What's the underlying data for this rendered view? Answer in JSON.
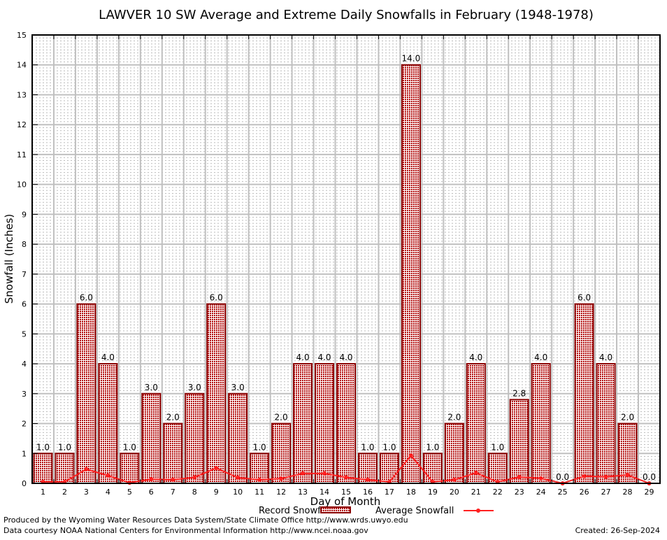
{
  "chart_data": {
    "type": "bar",
    "title": "LAWVER 10 SW Average and Extreme Daily Snowfalls in February (1948-1978)",
    "xlabel": "Day of Month",
    "ylabel": "Snowfall (Inches)",
    "ylim": [
      0,
      15
    ],
    "yticks": [
      0,
      1,
      2,
      3,
      4,
      5,
      6,
      7,
      8,
      9,
      10,
      11,
      12,
      13,
      14,
      15
    ],
    "categories": [
      "1",
      "2",
      "3",
      "4",
      "5",
      "6",
      "7",
      "8",
      "9",
      "10",
      "11",
      "12",
      "13",
      "14",
      "15",
      "16",
      "17",
      "18",
      "19",
      "20",
      "21",
      "22",
      "23",
      "24",
      "25",
      "26",
      "27",
      "28",
      "29"
    ],
    "grid": true,
    "legend_position": "bottom",
    "series": [
      {
        "name": "Record Snowfall",
        "type": "bar",
        "color": "#b00000",
        "values": [
          1.0,
          1.0,
          6.0,
          4.0,
          1.0,
          3.0,
          2.0,
          3.0,
          6.0,
          3.0,
          1.0,
          2.0,
          4.0,
          4.0,
          4.0,
          1.0,
          1.0,
          14.0,
          1.0,
          2.0,
          4.0,
          1.0,
          2.8,
          4.0,
          0.0,
          6.0,
          4.0,
          2.0,
          0.0
        ],
        "labels": [
          "1.0",
          "1.0",
          "6.0",
          "4.0",
          "1.0",
          "3.0",
          "2.0",
          "3.0",
          "6.0",
          "3.0",
          "1.0",
          "2.0",
          "4.0",
          "4.0",
          "4.0",
          "1.0",
          "1.0",
          "14.0",
          "1.0",
          "2.0",
          "4.0",
          "1.0",
          "2.8",
          "4.0",
          "0.0",
          "6.0",
          "4.0",
          "2.0",
          "0.0"
        ]
      },
      {
        "name": "Average Snowfall",
        "type": "line",
        "color": "#ff2020",
        "values": [
          0.05,
          0.05,
          0.47,
          0.26,
          0.02,
          0.14,
          0.12,
          0.2,
          0.51,
          0.19,
          0.12,
          0.16,
          0.33,
          0.33,
          0.2,
          0.12,
          0.05,
          0.93,
          0.05,
          0.12,
          0.35,
          0.05,
          0.21,
          0.17,
          0.0,
          0.24,
          0.22,
          0.28,
          0.0
        ]
      }
    ]
  },
  "footer": {
    "produced_by": "Produced by the Wyoming Water Resources Data System/State Climate Office http://www.wrds.uwyo.edu",
    "data_courtesy": "Data courtesy NOAA National Centers for Environmental Information http://www.ncei.noaa.gov",
    "created": "Created: 26-Sep-2024"
  }
}
